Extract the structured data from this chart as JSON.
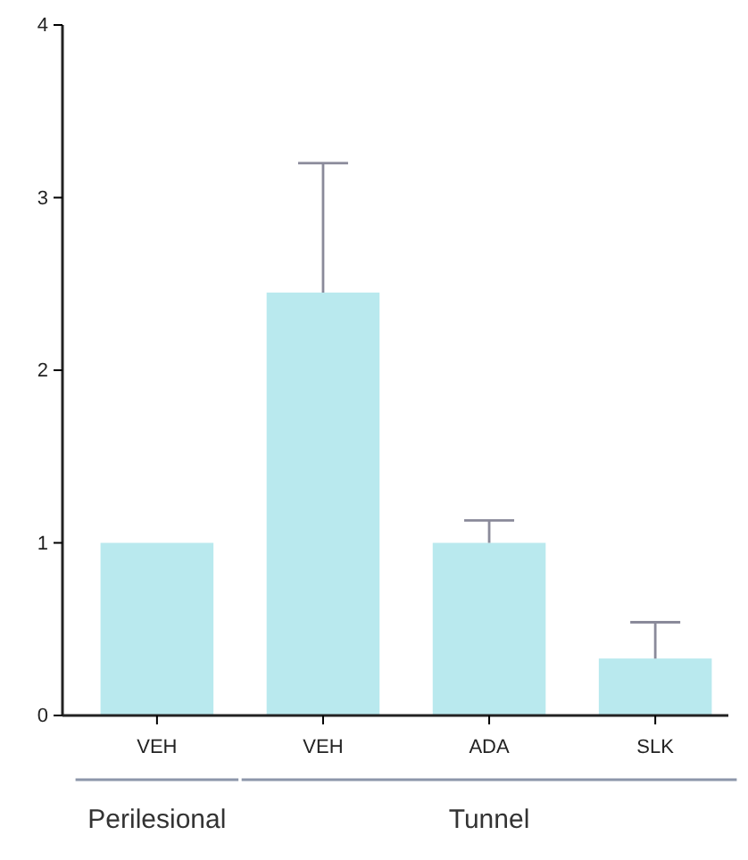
{
  "chart_data": {
    "type": "bar",
    "categories": [
      "VEH",
      "VEH",
      "ADA",
      "SLK"
    ],
    "values": [
      1.0,
      2.45,
      1.0,
      0.33
    ],
    "errors": [
      null,
      [
        2.45,
        3.2
      ],
      [
        1.0,
        1.13
      ],
      [
        0.33,
        0.54
      ]
    ],
    "color": "#b9e9ee",
    "ylim": [
      0,
      4
    ],
    "yticks": [
      0,
      1,
      2,
      3,
      4
    ],
    "grid": false,
    "annotations": [
      "Perilesional",
      "Tunnel"
    ]
  }
}
